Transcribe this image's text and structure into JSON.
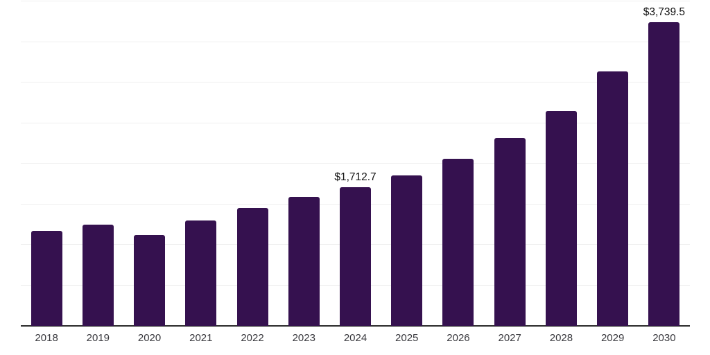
{
  "chart_data": {
    "type": "bar",
    "title": "",
    "xlabel": "",
    "ylabel": "",
    "categories": [
      "2018",
      "2019",
      "2020",
      "2021",
      "2022",
      "2023",
      "2024",
      "2025",
      "2026",
      "2027",
      "2028",
      "2029",
      "2030"
    ],
    "values": [
      1167,
      1245,
      1124,
      1296,
      1451,
      1588,
      1712.7,
      1854,
      2060,
      2318,
      2652,
      3133,
      3739.5
    ],
    "value_labels": {
      "2024": "$1,712.7",
      "2030": "$3,739.5"
    },
    "ylim": [
      0,
      4000
    ],
    "gridline_step": 500,
    "grid": true,
    "legend": false,
    "colors": {
      "bar": "#35114f",
      "axis_line": "#2b2b2b",
      "gridline": "#efefef",
      "tick_label": "#38383d",
      "value_label": "#111111",
      "background": "#ffffff"
    }
  }
}
